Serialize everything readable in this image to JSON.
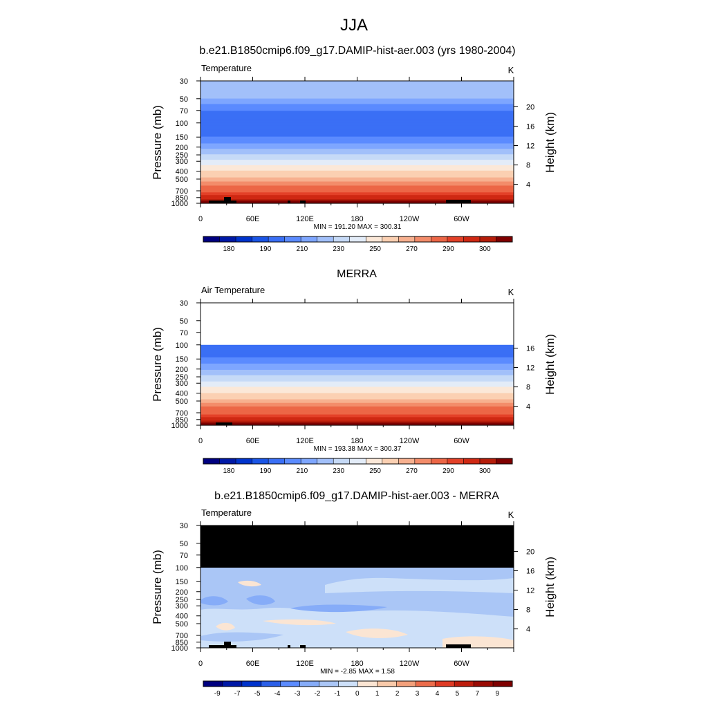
{
  "figure_title": "JJA",
  "chart_data": [
    {
      "type": "heatmap",
      "title": "b.e21.B1850cmip6.f09_g17.DAMIP-hist-aer.003 (yrs 1980-2004)",
      "variable_label": "Temperature",
      "units": "K",
      "ylabel": "Pressure (mb)",
      "ylabel_right": "Height (km)",
      "x_ticks": [
        "0",
        "60E",
        "120E",
        "180",
        "120W",
        "60W"
      ],
      "y_ticks": [
        "30",
        "50",
        "70",
        "100",
        "150",
        "200",
        "250",
        "300",
        "400",
        "500",
        "700",
        "850",
        "1000"
      ],
      "right_ticks": [
        "20",
        "16",
        "12",
        "8",
        "4"
      ],
      "stats": "MIN = 191.20  MAX = 300.31",
      "colorbar_labels": [
        "180",
        "190",
        "210",
        "230",
        "250",
        "270",
        "290",
        "300"
      ],
      "profile": {
        "pressure": [
          30,
          40,
          50,
          70,
          100,
          150,
          200,
          250,
          300,
          400,
          500,
          700,
          850,
          1000
        ],
        "values": [
          214,
          212,
          210,
          200,
          192,
          200,
          208,
          222,
          234,
          251,
          262,
          278,
          288,
          300
        ]
      }
    },
    {
      "type": "heatmap",
      "title": "MERRA",
      "variable_label": "Air Temperature",
      "units": "K",
      "ylabel": "Pressure (mb)",
      "ylabel_right": "Height (km)",
      "x_ticks": [
        "0",
        "60E",
        "120E",
        "180",
        "120W",
        "60W"
      ],
      "y_ticks": [
        "30",
        "50",
        "70",
        "100",
        "150",
        "200",
        "250",
        "300",
        "400",
        "500",
        "700",
        "850",
        "1000"
      ],
      "right_ticks": [
        "16",
        "12",
        "8",
        "4"
      ],
      "stats": "MIN = 193.38  MAX = 300.37",
      "colorbar_labels": [
        "180",
        "190",
        "210",
        "230",
        "250",
        "270",
        "290",
        "300"
      ],
      "profile": {
        "pressure": [
          100,
          150,
          200,
          250,
          300,
          400,
          500,
          700,
          850,
          1000
        ],
        "values": [
          194,
          201,
          209,
          222,
          234,
          251,
          262,
          278,
          288,
          300
        ]
      }
    },
    {
      "type": "heatmap",
      "title": "b.e21.B1850cmip6.f09_g17.DAMIP-hist-aer.003 - MERRA",
      "variable_label": "Temperature",
      "units": "K",
      "ylabel": "Pressure (mb)",
      "ylabel_right": "Height (km)",
      "x_ticks": [
        "0",
        "60E",
        "120E",
        "180",
        "120W",
        "60W"
      ],
      "y_ticks": [
        "30",
        "50",
        "70",
        "100",
        "150",
        "200",
        "250",
        "300",
        "400",
        "500",
        "700",
        "850",
        "1000"
      ],
      "right_ticks": [
        "20",
        "16",
        "12",
        "8",
        "4"
      ],
      "stats": "MIN =  -2.85  MAX =   1.58",
      "colorbar_labels": [
        "-9",
        "-7",
        "-5",
        "-4",
        "-3",
        "-2",
        "-1",
        "0",
        "1",
        "2",
        "3",
        "4",
        "5",
        "7",
        "9"
      ],
      "missing_above_mb": 100,
      "typical_difference_range": [
        -2,
        1
      ]
    }
  ],
  "colors": {
    "temperature_scale": [
      "#00007f",
      "#0019a6",
      "#0033cc",
      "#1a55e6",
      "#3a6ff5",
      "#5b8bff",
      "#7ea6ff",
      "#a2c0fa",
      "#c6daf7",
      "#e3ecf8",
      "#fbe8d8",
      "#fbd0b2",
      "#f7b08f",
      "#f38c6a",
      "#ec6646",
      "#e34128",
      "#cf2813",
      "#b51d0a",
      "#7f0000"
    ],
    "difference_scale": [
      "#00007f",
      "#0019a6",
      "#0033cc",
      "#2b5fe8",
      "#5b8bff",
      "#86acf8",
      "#aac6f6",
      "#cde0f9",
      "#fbe5d3",
      "#f8c9a9",
      "#f3a07b",
      "#ec6c4b",
      "#df3a24",
      "#bd1c0c",
      "#9a0a03",
      "#7f0000"
    ],
    "missing": "#000000"
  }
}
